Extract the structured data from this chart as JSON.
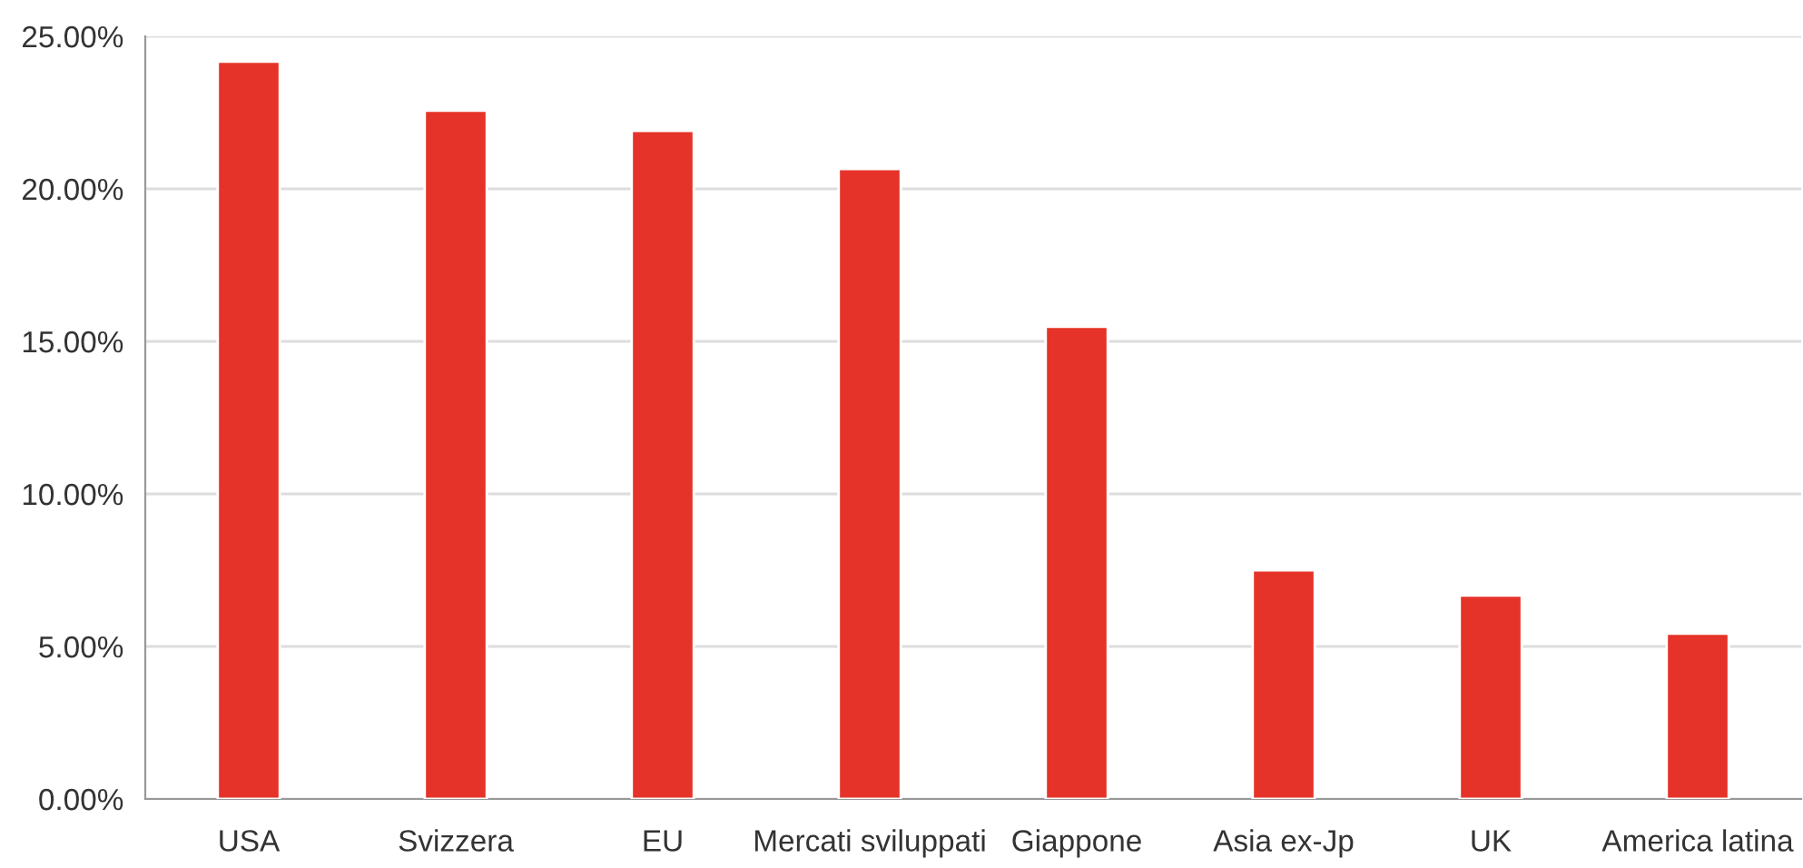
{
  "chart_data": {
    "type": "bar",
    "categories": [
      "USA",
      "Svizzera",
      "EU",
      "Mercati sviluppati",
      "Giappone",
      "Asia ex-Jp",
      "UK",
      "America latina"
    ],
    "values": [
      24.17,
      22.56,
      21.9,
      20.65,
      15.48,
      7.5,
      6.67,
      5.42
    ],
    "color": "#e53329",
    "ylim": [
      0,
      25
    ],
    "yticks": [
      {
        "value": 0,
        "label": "0.00%"
      },
      {
        "value": 5,
        "label": "5.00%"
      },
      {
        "value": 10,
        "label": "10.00%"
      },
      {
        "value": 15,
        "label": "15.00%"
      },
      {
        "value": 20,
        "label": "20.00%"
      },
      {
        "value": 25,
        "label": "25.00%"
      }
    ],
    "grid": "y"
  }
}
